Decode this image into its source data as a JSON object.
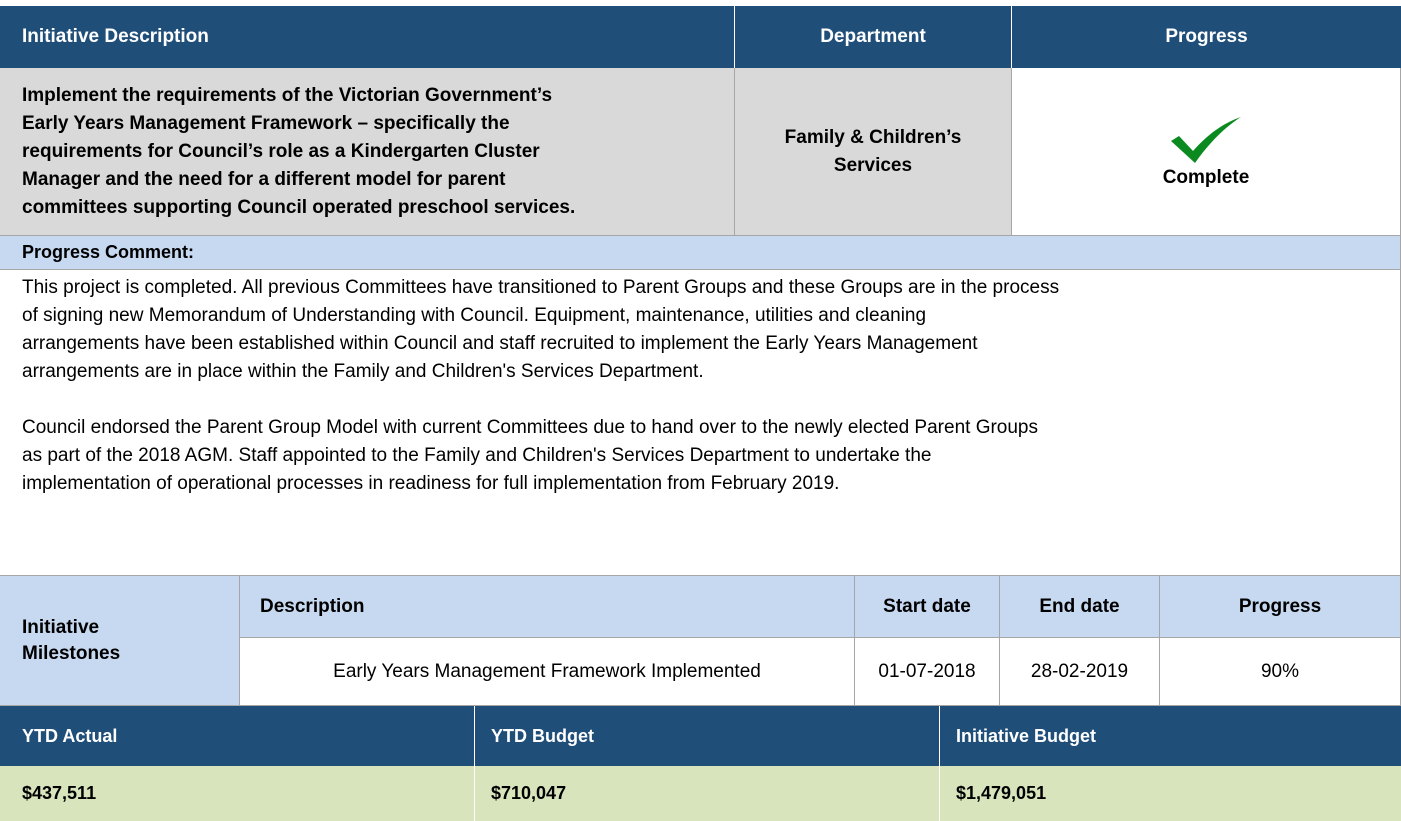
{
  "header": {
    "columns": [
      "Initiative Description",
      "Department",
      "Progress"
    ]
  },
  "initiative": {
    "description": [
      "Implement the requirements of the Victorian Government’s",
      "Early Years Management Framework – specifically the",
      "requirements for Council’s role as a Kindergarten Cluster",
      "Manager and the need for a different model for parent",
      "committees supporting Council operated preschool services."
    ],
    "department": [
      "Family & Children’s",
      "Services"
    ],
    "progress": "Complete"
  },
  "progress_comment": {
    "label": "Progress Comment:",
    "paragraphs": [
      [
        "This project is completed. All previous Committees have transitioned to Parent Groups and these Groups are in the process",
        "of signing new Memorandum of Understanding with Council.  Equipment, maintenance, utilities and cleaning",
        "arrangements have been established within Council and staff recruited to implement the Early Years Management",
        "arrangements are in place within the Family and Children's Services Department."
      ],
      [
        "Council endorsed the Parent Group Model with current Committees due to hand over to the newly elected Parent Groups",
        "as part of the 2018 AGM. Staff appointed to the Family and Children's Services Department to undertake the",
        "implementation of operational processes in readiness for full implementation from February 2019."
      ]
    ]
  },
  "milestones": {
    "label": [
      "Initiative",
      "Milestones"
    ],
    "columns": [
      "Description",
      "Start date",
      "End date",
      "Progress"
    ],
    "rows": [
      [
        "Early Years Management Framework Implemented",
        "01-07-2018",
        "28-02-2019",
        "90%"
      ]
    ]
  },
  "budget": {
    "columns": [
      "YTD Actual",
      "YTD Budget",
      "Initiative Budget"
    ],
    "values": [
      "$437,511",
      "$710,047",
      "$1,479,051"
    ]
  }
}
